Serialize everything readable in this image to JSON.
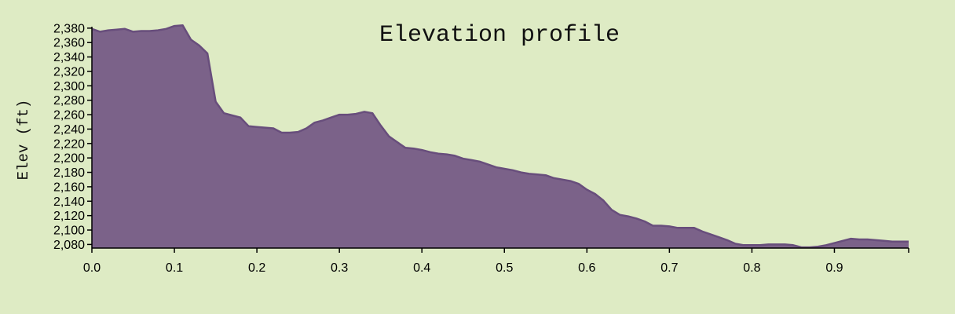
{
  "chart_data": {
    "type": "area",
    "title": "Elevation profile",
    "xlabel": "",
    "ylabel": "Elev (ft)",
    "xlim": [
      0,
      0.99
    ],
    "ylim": [
      2075,
      2382
    ],
    "x_ticks": [
      0.0,
      0.1,
      0.2,
      0.3,
      0.4,
      0.5,
      0.6,
      0.7,
      0.8,
      0.9
    ],
    "x_tick_labels": [
      "0.0",
      "0.1",
      "0.2",
      "0.3",
      "0.4",
      "0.5",
      "0.6",
      "0.7",
      "0.8",
      "0.9"
    ],
    "y_ticks": [
      2080,
      2100,
      2120,
      2140,
      2160,
      2180,
      2200,
      2220,
      2240,
      2260,
      2280,
      2300,
      2320,
      2340,
      2360,
      2380
    ],
    "y_tick_labels": [
      "2,080",
      "2,100",
      "2,120",
      "2,140",
      "2,160",
      "2,180",
      "2,200",
      "2,220",
      "2,240",
      "2,260",
      "2,280",
      "2,300",
      "2,320",
      "2,340",
      "2,360",
      "2,380"
    ],
    "grid": false,
    "colors": {
      "fill": "#7b6289",
      "stroke": "#684e7c",
      "background": "#deebc4"
    },
    "series": [
      {
        "x": [
          0.0,
          0.01,
          0.02,
          0.03,
          0.04,
          0.05,
          0.06,
          0.07,
          0.08,
          0.09,
          0.1,
          0.11,
          0.12,
          0.13,
          0.14,
          0.15,
          0.16,
          0.17,
          0.18,
          0.19,
          0.2,
          0.21,
          0.22,
          0.23,
          0.24,
          0.25,
          0.26,
          0.27,
          0.28,
          0.29,
          0.3,
          0.31,
          0.32,
          0.33,
          0.34,
          0.35,
          0.36,
          0.37,
          0.38,
          0.39,
          0.4,
          0.41,
          0.42,
          0.43,
          0.44,
          0.45,
          0.46,
          0.47,
          0.48,
          0.49,
          0.5,
          0.51,
          0.52,
          0.53,
          0.54,
          0.55,
          0.56,
          0.57,
          0.58,
          0.59,
          0.6,
          0.61,
          0.62,
          0.63,
          0.64,
          0.65,
          0.66,
          0.67,
          0.68,
          0.69,
          0.7,
          0.71,
          0.72,
          0.73,
          0.74,
          0.75,
          0.76,
          0.77,
          0.78,
          0.79,
          0.8,
          0.81,
          0.82,
          0.83,
          0.84,
          0.85,
          0.86,
          0.87,
          0.88,
          0.89,
          0.9,
          0.91,
          0.92,
          0.93,
          0.94,
          0.95,
          0.96,
          0.97,
          0.98,
          0.99
        ],
        "values": [
          2379,
          2375,
          2377,
          2378,
          2379,
          2375,
          2376,
          2376,
          2377,
          2379,
          2383,
          2384,
          2364,
          2356,
          2345,
          2278,
          2262,
          2259,
          2256,
          2244,
          2243,
          2242,
          2241,
          2235,
          2235,
          2236,
          2241,
          2249,
          2252,
          2256,
          2260,
          2260,
          2261,
          2264,
          2262,
          2245,
          2230,
          2222,
          2214,
          2213,
          2211,
          2208,
          2206,
          2205,
          2203,
          2199,
          2197,
          2195,
          2191,
          2187,
          2185,
          2183,
          2180,
          2178,
          2177,
          2176,
          2172,
          2170,
          2168,
          2164,
          2156,
          2150,
          2141,
          2128,
          2121,
          2119,
          2116,
          2112,
          2106,
          2106,
          2105,
          2103,
          2103,
          2103,
          2098,
          2094,
          2090,
          2086,
          2081,
          2079,
          2079,
          2079,
          2080,
          2080,
          2080,
          2079,
          2076,
          2076,
          2077,
          2079,
          2082,
          2085,
          2088,
          2087,
          2087,
          2086,
          2085,
          2084,
          2084,
          2084
        ]
      }
    ]
  }
}
